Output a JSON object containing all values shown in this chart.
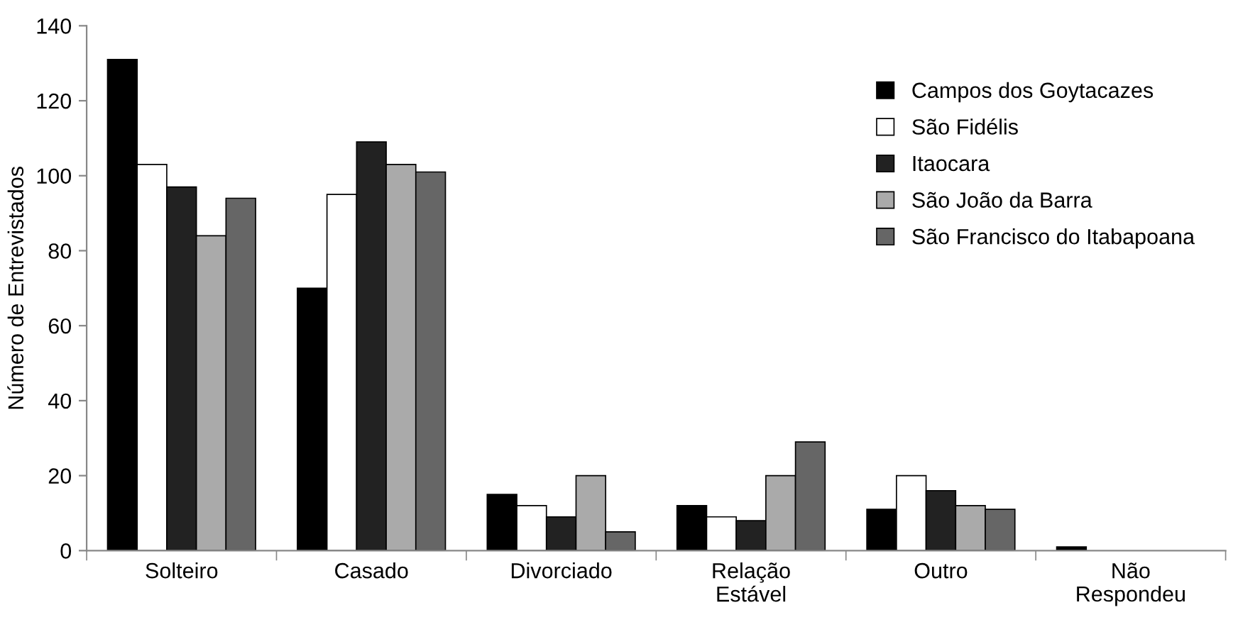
{
  "chart_data": {
    "type": "bar",
    "ylabel": "Número de Entrevistados",
    "categories": [
      "Solteiro",
      "Casado",
      "Divorciado",
      "Relação\nEstável",
      "Outro",
      "Não\nRespondeu"
    ],
    "series": [
      {
        "name": "Campos dos Goytacazes",
        "color": "#000000",
        "values": [
          131,
          70,
          15,
          12,
          11,
          1
        ]
      },
      {
        "name": "São Fidélis",
        "color": "#ffffff",
        "values": [
          103,
          95,
          12,
          9,
          20,
          0
        ]
      },
      {
        "name": "Itaocara",
        "color": "#222222",
        "values": [
          97,
          109,
          9,
          8,
          16,
          0
        ]
      },
      {
        "name": "São João da Barra",
        "color": "#aaaaaa",
        "values": [
          84,
          103,
          20,
          20,
          12,
          0
        ]
      },
      {
        "name": "São Francisco do Itabapoana",
        "color": "#666666",
        "values": [
          94,
          101,
          5,
          29,
          11,
          0
        ]
      }
    ],
    "ylim": [
      0,
      140
    ],
    "yticks": [
      0,
      20,
      40,
      60,
      80,
      100,
      120,
      140
    ],
    "grid": false,
    "legend": "top right"
  }
}
